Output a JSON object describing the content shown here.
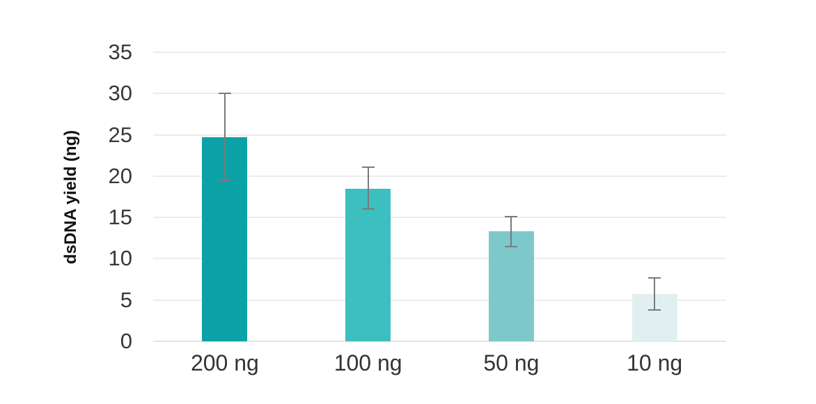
{
  "decorations": {
    "accent_color": "#0A9FA2"
  },
  "chart_data": {
    "type": "bar",
    "title": "",
    "xlabel": "",
    "ylabel": "dsDNA yield (ng)",
    "categories": [
      "200 ng",
      "100 ng",
      "50 ng",
      "10 ng"
    ],
    "values": [
      24.7,
      18.5,
      13.3,
      5.7
    ],
    "error_low": [
      19.5,
      16.0,
      11.5,
      3.8
    ],
    "error_high": [
      30.0,
      21.1,
      15.1,
      7.7
    ],
    "bar_colors": [
      "#0AA2A6",
      "#3DBFC0",
      "#7DC8CB",
      "#E1EFF0"
    ],
    "error_color": "#7A7A7A",
    "ylim": [
      0,
      35
    ],
    "yticks": [
      0,
      5,
      10,
      15,
      20,
      25,
      30,
      35
    ],
    "grid": "horizontal",
    "gridline_color": "#ECECEC",
    "baseline_color": "#E4E4E4",
    "legend": "none"
  }
}
